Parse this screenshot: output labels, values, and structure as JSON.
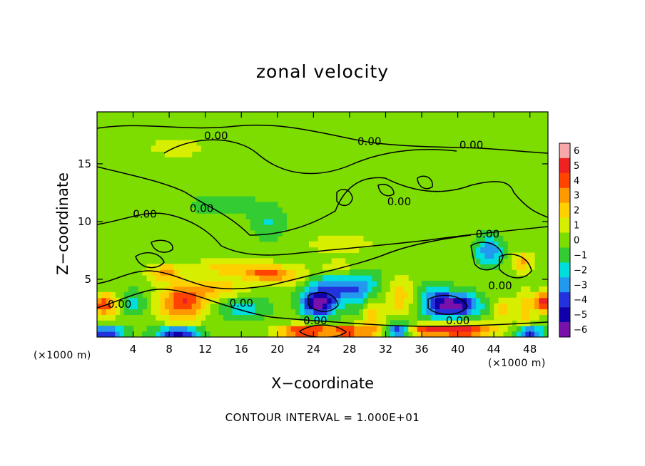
{
  "chart_data": {
    "type": "heatmap",
    "title": "zonal velocity",
    "xlabel": "X−coordinate",
    "ylabel": "Z−coordinate",
    "x_units": "(×1000 m)",
    "footnote": "CONTOUR INTERVAL = 1.000E+01",
    "xlim": [
      0,
      50
    ],
    "ylim": [
      0,
      19.5
    ],
    "x_ticks": [
      4,
      8,
      12,
      16,
      20,
      24,
      28,
      32,
      36,
      40,
      44,
      48
    ],
    "y_ticks": [
      5,
      10,
      15
    ],
    "colorbar": {
      "levels": [
        6,
        5,
        4,
        3,
        2,
        1,
        0,
        -1,
        -2,
        -3,
        -4,
        -5,
        -6
      ],
      "labels": [
        "6",
        "5",
        "4",
        "3",
        "2",
        "1",
        "0",
        "−1",
        "−2",
        "−3",
        "−4",
        "−5",
        "−6"
      ],
      "colors": [
        "#f7a8a8",
        "#ee2222",
        "#ff4400",
        "#ff9900",
        "#ffd000",
        "#d8ee00",
        "#7ddc00",
        "#33cc33",
        "#00dddd",
        "#2299ee",
        "#2233dd",
        "#1100aa",
        "#7711aa"
      ]
    },
    "contour_labels": [
      {
        "text": "0.00",
        "x": 13.2,
        "y": 17.4
      },
      {
        "text": "0.00",
        "x": 30.2,
        "y": 16.9
      },
      {
        "text": "0.00",
        "x": 41.5,
        "y": 16.6
      },
      {
        "text": "0.00",
        "x": 11.6,
        "y": 11.1
      },
      {
        "text": "0.00",
        "x": 5.3,
        "y": 10.6
      },
      {
        "text": "0.00",
        "x": 33.5,
        "y": 11.7
      },
      {
        "text": "0.00",
        "x": 43.3,
        "y": 8.9
      },
      {
        "text": "0.00",
        "x": 44.7,
        "y": 4.4
      },
      {
        "text": "0.00",
        "x": 2.5,
        "y": 2.8
      },
      {
        "text": "0.00",
        "x": 16.0,
        "y": 2.9
      },
      {
        "text": "0.00",
        "x": 24.2,
        "y": 1.4
      },
      {
        "text": "0.00",
        "x": 40.0,
        "y": 1.4
      }
    ],
    "anomalies": [
      {
        "x": 9.5,
        "y": 3.0,
        "v": 4.5,
        "rx": 2.5,
        "ry": 1.6
      },
      {
        "x": 0.8,
        "y": 2.8,
        "v": 4.2,
        "rx": 1.4,
        "ry": 0.9
      },
      {
        "x": 13.5,
        "y": 4.2,
        "v": 2.2,
        "rx": 3.0,
        "ry": 0.9
      },
      {
        "x": 7.5,
        "y": 5.6,
        "v": 2.8,
        "rx": 1.8,
        "ry": 0.7
      },
      {
        "x": 18.5,
        "y": 5.6,
        "v": 3.8,
        "rx": 2.5,
        "ry": 0.7
      },
      {
        "x": 14.0,
        "y": 6.1,
        "v": 2.0,
        "rx": 2.6,
        "ry": 0.7
      },
      {
        "x": 21.5,
        "y": 5.2,
        "v": 1.8,
        "rx": 2.0,
        "ry": 0.8
      },
      {
        "x": 27.5,
        "y": 6.0,
        "v": 1.5,
        "rx": 3.0,
        "ry": 0.7
      },
      {
        "x": 26.0,
        "y": 4.2,
        "v": -3.2,
        "rx": 3.2,
        "ry": 1.2
      },
      {
        "x": 24.5,
        "y": 2.8,
        "v": -5.8,
        "rx": 1.8,
        "ry": 1.0
      },
      {
        "x": 29.5,
        "y": 4.2,
        "v": -2.5,
        "rx": 2.2,
        "ry": 2.0
      },
      {
        "x": 30.5,
        "y": 2.0,
        "v": 2.5,
        "rx": 1.2,
        "ry": 2.0
      },
      {
        "x": 33.5,
        "y": 3.5,
        "v": 2.2,
        "rx": 1.5,
        "ry": 1.5
      },
      {
        "x": 33.5,
        "y": 0.6,
        "v": -4.5,
        "rx": 1.2,
        "ry": 0.6
      },
      {
        "x": 23.0,
        "y": 0.5,
        "v": 5.5,
        "rx": 2.8,
        "ry": 0.5
      },
      {
        "x": 28.0,
        "y": 0.5,
        "v": 4.5,
        "rx": 2.5,
        "ry": 0.5
      },
      {
        "x": 40.0,
        "y": 2.8,
        "v": -5.5,
        "rx": 2.5,
        "ry": 1.0
      },
      {
        "x": 37.5,
        "y": 3.0,
        "v": -3.0,
        "rx": 1.8,
        "ry": 1.5
      },
      {
        "x": 40.5,
        "y": 0.6,
        "v": 5.5,
        "rx": 3.2,
        "ry": 0.6
      },
      {
        "x": 36.5,
        "y": 0.6,
        "v": 4.0,
        "rx": 2.0,
        "ry": 0.5
      },
      {
        "x": 43.5,
        "y": 7.5,
        "v": -3.5,
        "rx": 1.5,
        "ry": 1.2
      },
      {
        "x": 45.0,
        "y": 2.3,
        "v": 2.0,
        "rx": 1.0,
        "ry": 1.2
      },
      {
        "x": 47.2,
        "y": 6.5,
        "v": 2.6,
        "rx": 1.0,
        "ry": 0.8
      },
      {
        "x": 47.5,
        "y": 2.5,
        "v": 2.2,
        "rx": 1.0,
        "ry": 1.5
      },
      {
        "x": 49.5,
        "y": 3.0,
        "v": 5.5,
        "rx": 0.9,
        "ry": 0.8
      },
      {
        "x": 48.0,
        "y": 0.4,
        "v": -5.0,
        "rx": 1.5,
        "ry": 0.5
      },
      {
        "x": 9.0,
        "y": 0.4,
        "v": -5.5,
        "rx": 2.5,
        "ry": 0.5
      },
      {
        "x": 1.0,
        "y": 0.4,
        "v": -5.0,
        "rx": 2.0,
        "ry": 0.5
      },
      {
        "x": 4.0,
        "y": 3.0,
        "v": -2.2,
        "rx": 1.4,
        "ry": 1.0
      },
      {
        "x": 16.0,
        "y": 2.5,
        "v": -2.0,
        "rx": 3.0,
        "ry": 1.0
      },
      {
        "x": 19.0,
        "y": 10.0,
        "v": -1.6,
        "rx": 2.0,
        "ry": 1.6
      },
      {
        "x": 14.0,
        "y": 11.5,
        "v": -1.2,
        "rx": 4.0,
        "ry": 1.0
      },
      {
        "x": 27.0,
        "y": 8.0,
        "v": 1.0,
        "rx": 4.0,
        "ry": 0.8
      },
      {
        "x": 30.0,
        "y": 14.0,
        "v": 0.4,
        "rx": 15.0,
        "ry": 4.0
      },
      {
        "x": 8.0,
        "y": 16.5,
        "v": 0.5,
        "rx": 10.0,
        "ry": 2.5
      }
    ]
  }
}
